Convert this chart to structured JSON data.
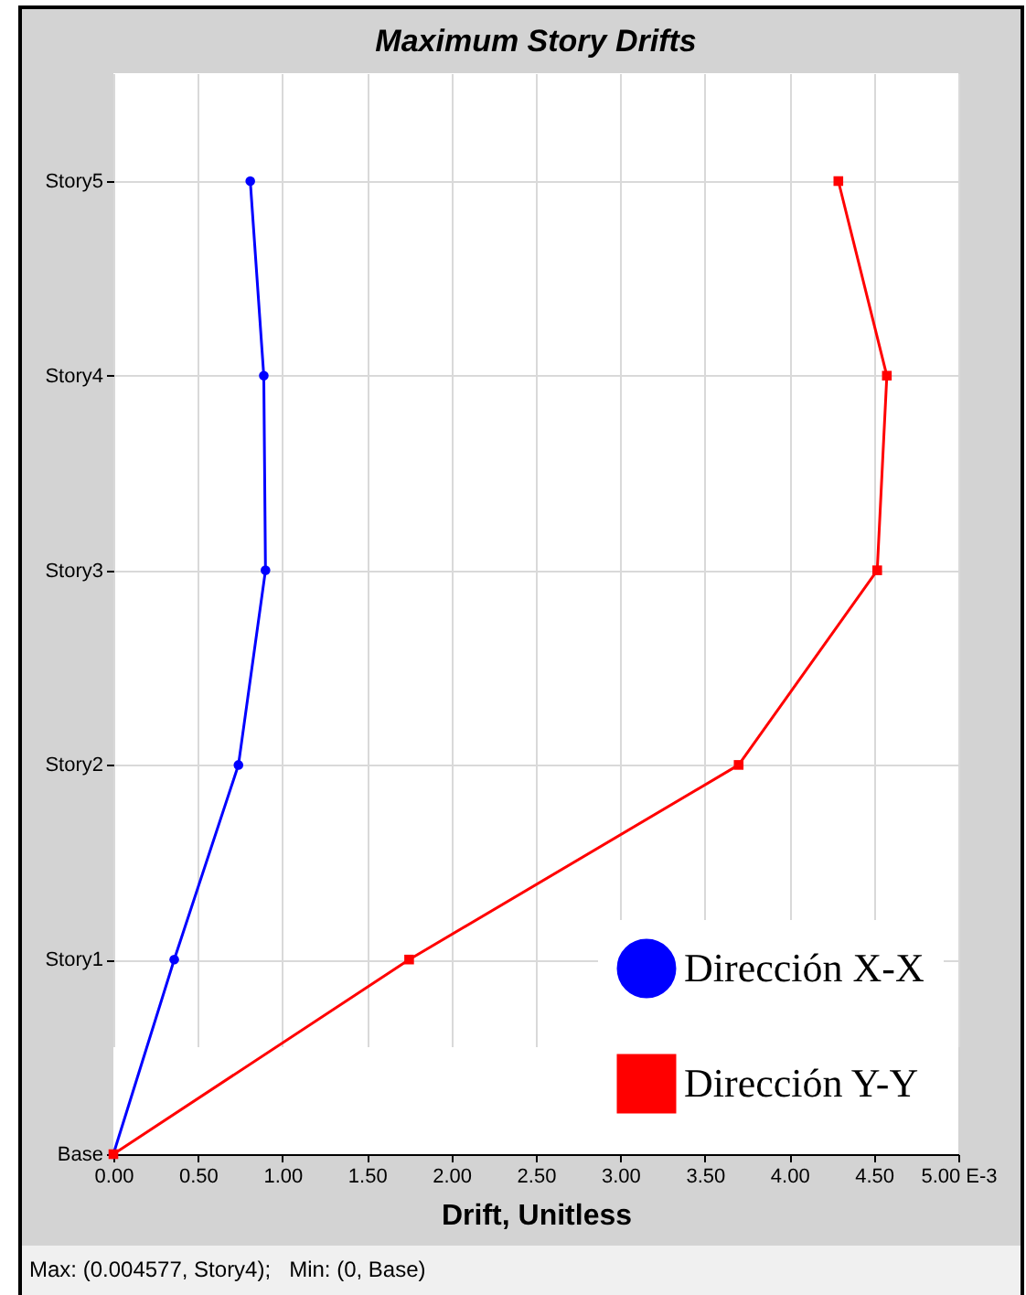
{
  "chart_data": {
    "type": "line",
    "orientation": "horizontal",
    "title": "Maximum Story Drifts",
    "xlabel": "Drift, Unitless",
    "xlim": [
      0,
      5
    ],
    "xticks": [
      {
        "value": 0,
        "label": "0.00"
      },
      {
        "value": 0.5,
        "label": "0.50"
      },
      {
        "value": 1,
        "label": "1.00"
      },
      {
        "value": 1.5,
        "label": "1.50"
      },
      {
        "value": 2,
        "label": "2.00"
      },
      {
        "value": 2.5,
        "label": "2.50"
      },
      {
        "value": 3,
        "label": "3.00"
      },
      {
        "value": 3.5,
        "label": "3.50"
      },
      {
        "value": 4,
        "label": "4.00"
      },
      {
        "value": 4.5,
        "label": "4.50"
      },
      {
        "value": 5,
        "label": "5.00 E-3"
      }
    ],
    "categories": [
      "Story5",
      "Story4",
      "Story3",
      "Story2",
      "Story1",
      "Base"
    ],
    "series": [
      {
        "name": "Dirección X-X",
        "color": "#0000ff",
        "marker": "circle",
        "values": [
          0.81,
          0.89,
          0.9,
          0.74,
          0.36,
          0
        ]
      },
      {
        "name": "Dirección Y-Y",
        "color": "#ff0000",
        "marker": "square",
        "values": [
          4.29,
          4.577,
          4.52,
          3.7,
          1.75,
          0
        ]
      }
    ],
    "grid": true,
    "legend": "bottom right",
    "annotations": [
      "Max: (0.004577, Story4);   Min: (0, Base)"
    ]
  }
}
